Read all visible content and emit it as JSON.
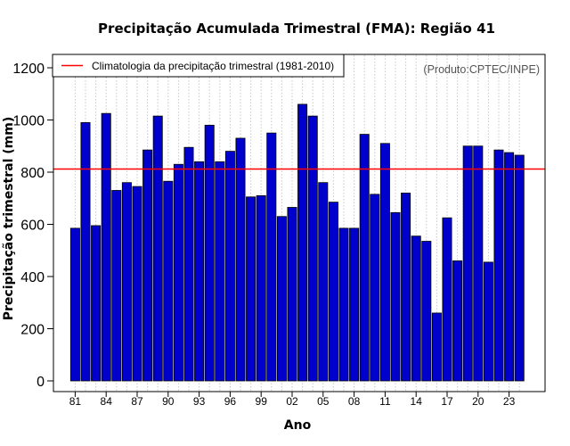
{
  "chart_data": {
    "type": "bar",
    "title": "Precipitação Acumulada Trimestral (FMA): Região 41",
    "xlabel": "Ano",
    "ylabel": "Precipitação trimestral (mm)",
    "ylim": [
      0,
      1260
    ],
    "yticks": [
      0,
      200,
      400,
      600,
      800,
      1000,
      1200
    ],
    "credit": "(Produto:CPTEC/INPE)",
    "categories": [
      "1981",
      "1982",
      "1983",
      "1984",
      "1985",
      "1986",
      "1987",
      "1988",
      "1989",
      "1990",
      "1991",
      "1992",
      "1993",
      "1994",
      "1995",
      "1996",
      "1997",
      "1998",
      "1999",
      "2000",
      "2001",
      "2002",
      "2003",
      "2004",
      "2005",
      "2006",
      "2007",
      "2008",
      "2009",
      "2010",
      "2011",
      "2012",
      "2013",
      "2014",
      "2015",
      "2016",
      "2017",
      "2018",
      "2019",
      "2020",
      "2021",
      "2022",
      "2023",
      "2024"
    ],
    "xtick_labels": [
      "81",
      "84",
      "87",
      "90",
      "93",
      "96",
      "99",
      "02",
      "05",
      "08",
      "11",
      "14",
      "17",
      "20",
      "23"
    ],
    "xtick_every": 3,
    "values": [
      585,
      990,
      595,
      1025,
      730,
      760,
      745,
      885,
      1015,
      765,
      830,
      895,
      840,
      980,
      840,
      880,
      930,
      705,
      710,
      950,
      630,
      665,
      1060,
      1015,
      760,
      685,
      585,
      585,
      945,
      715,
      910,
      645,
      720,
      555,
      535,
      260,
      625,
      460,
      900,
      900,
      455,
      885,
      875,
      865
    ],
    "bar_color": "#0000cc",
    "reference_line": {
      "label": "Climatologia da precipitação trimestral (1981-2010)",
      "value": 812,
      "color": "#ff0000"
    },
    "legend_position": "top-left",
    "grid": "vertical dotted"
  }
}
